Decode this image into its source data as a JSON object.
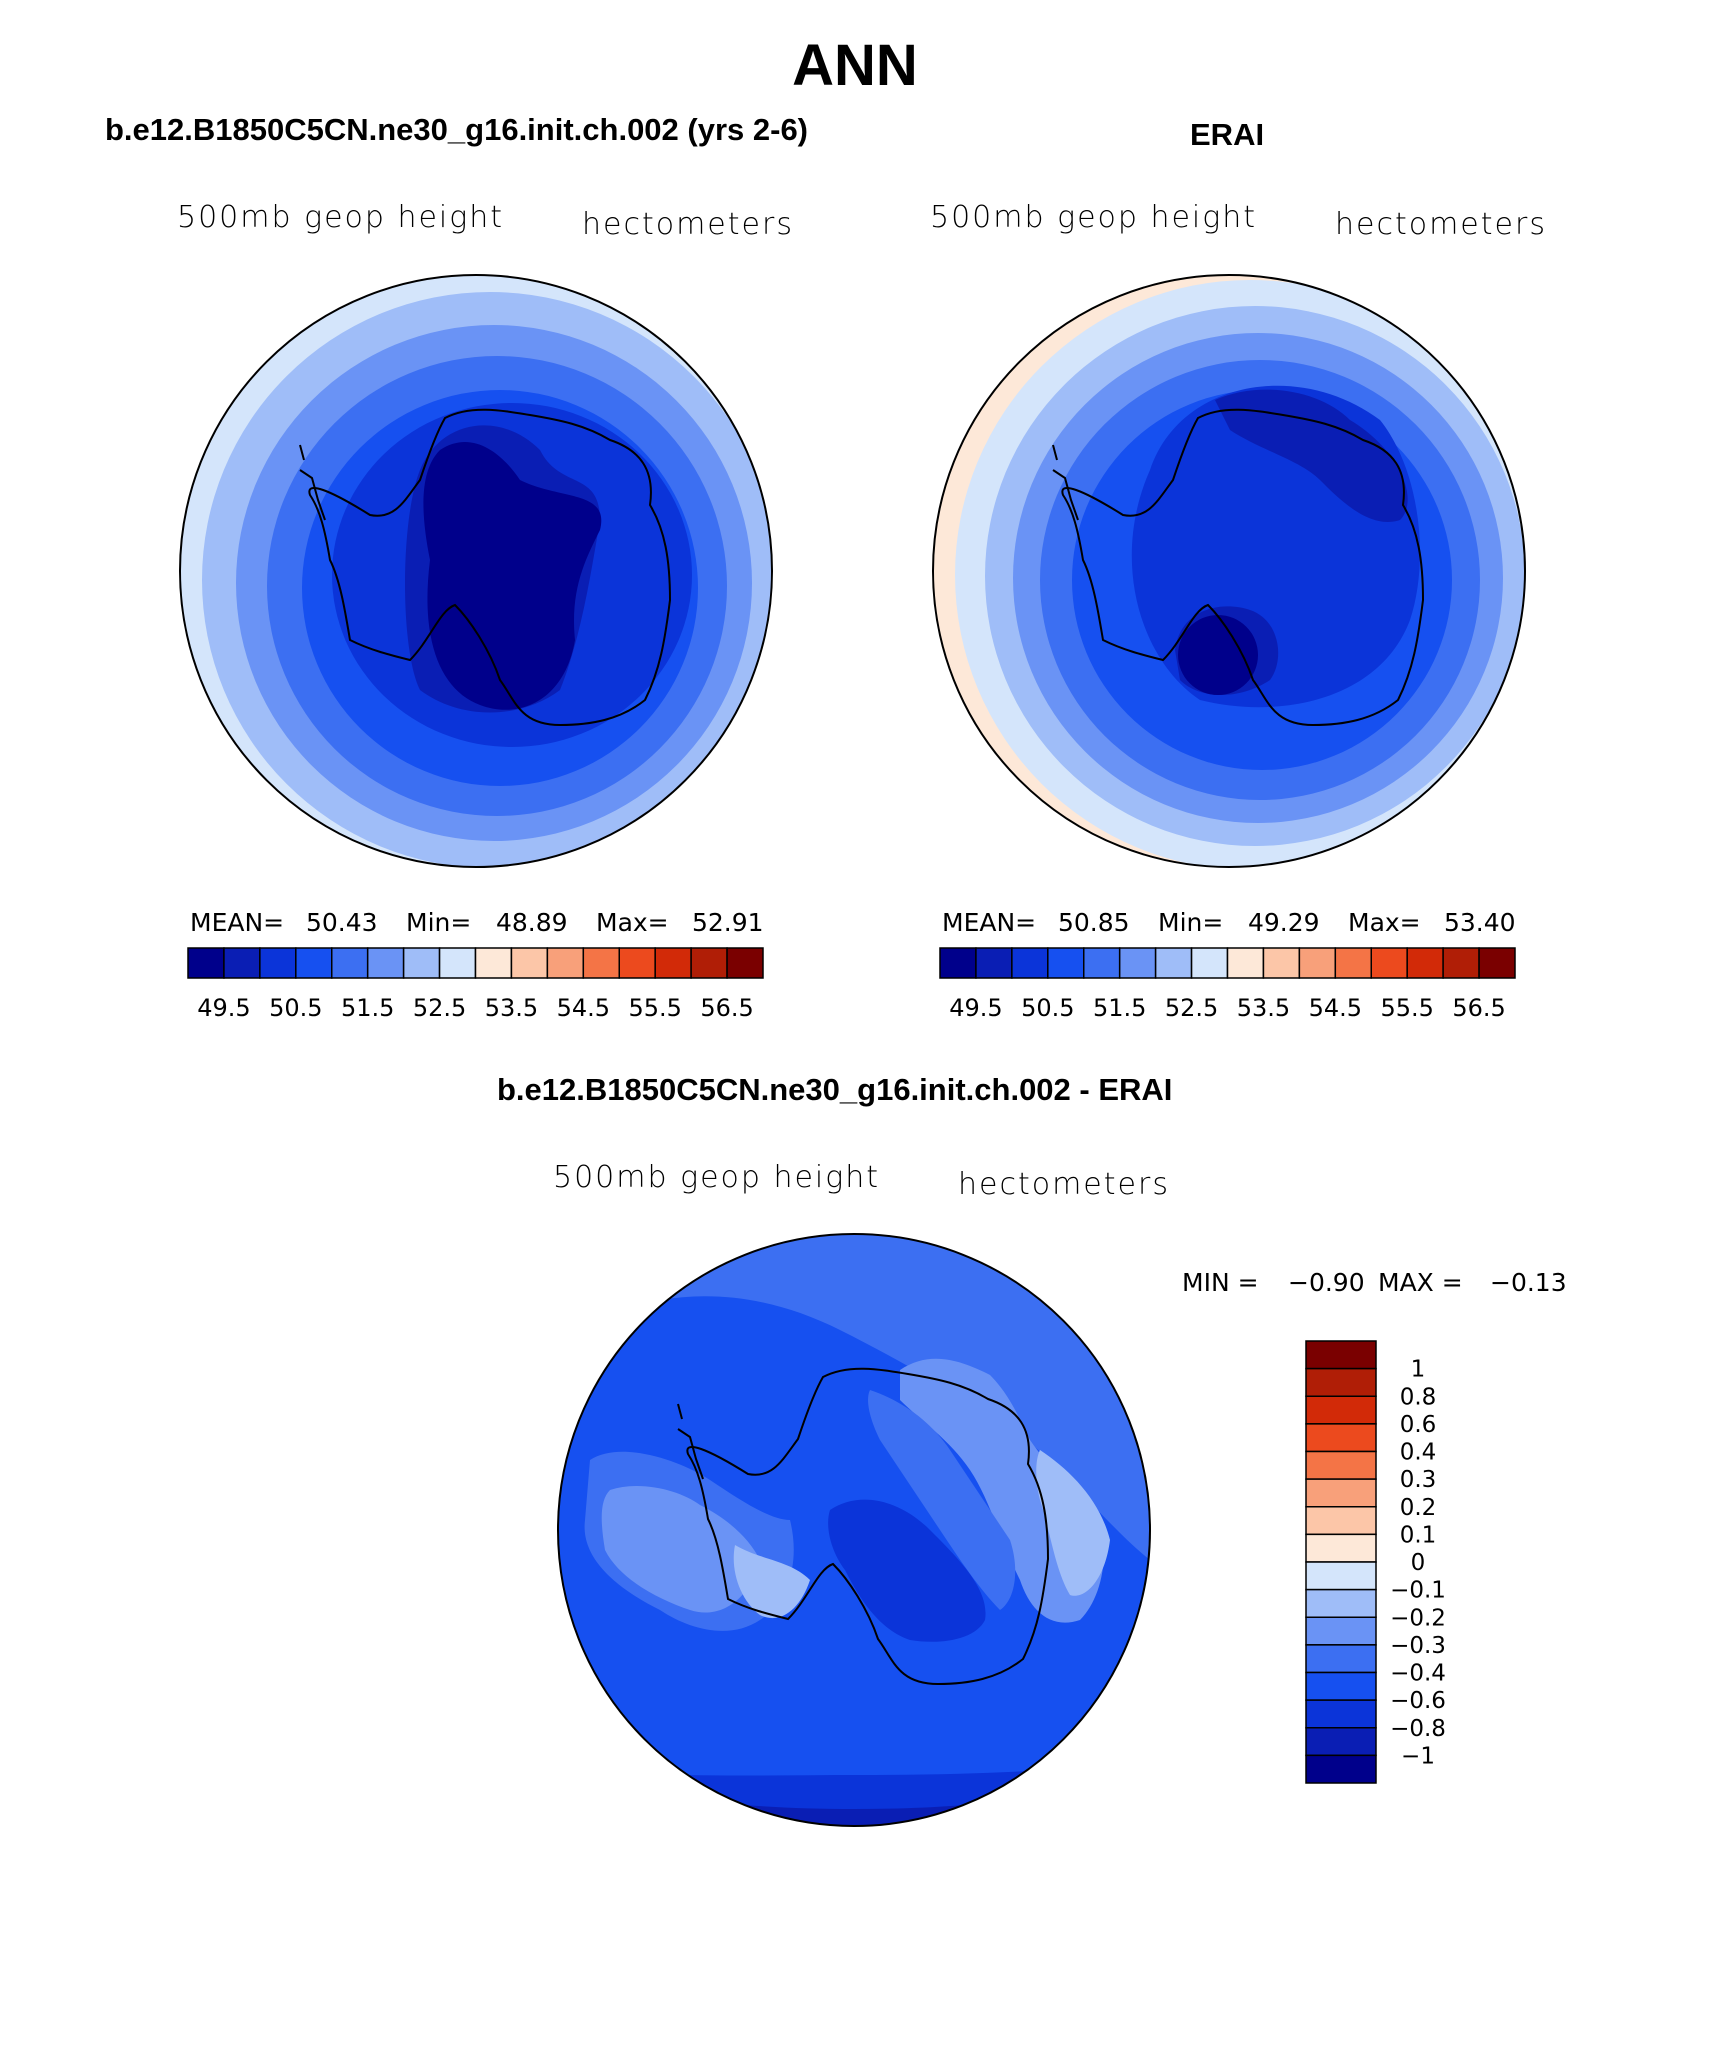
{
  "title": "ANN",
  "colors": {
    "abs_levels": [
      "#00008b",
      "#0a1eb4",
      "#0b34d9",
      "#1650f0",
      "#3c6ff2",
      "#6a93f5",
      "#9fbdf8",
      "#d4e5fb",
      "#fde8d8",
      "#fcc6a8",
      "#f8a07a",
      "#f47446",
      "#ec4a1e",
      "#d22a08",
      "#b01e06",
      "#7a0000"
    ],
    "diff_levels": [
      "#00008b",
      "#0a1eb4",
      "#0b34d9",
      "#1650f0",
      "#3c6ff2",
      "#6a93f5",
      "#9fbdf8",
      "#d4e5fb",
      "#fde8d8",
      "#fcc6a8",
      "#f8a07a",
      "#f47446",
      "#ec4a1e",
      "#d22a08",
      "#b01e06",
      "#7a0000"
    ]
  },
  "panels": [
    {
      "title": "b.e12.B1850C5CN.ne30_g16.init.ch.002 (yrs 2-6)",
      "field_label": "500mb geop height",
      "units_label": "hectometers",
      "stats": {
        "mean_label": "MEAN=",
        "mean": "50.43",
        "min_label": "Min=",
        "min": "48.89",
        "max_label": "Max=",
        "max": "52.91"
      },
      "colorbar_ticks": [
        "49.5",
        "50.5",
        "51.5",
        "52.5",
        "53.5",
        "54.5",
        "55.5",
        "56.5"
      ]
    },
    {
      "title": "ERAI",
      "field_label": "500mb geop height",
      "units_label": "hectometers",
      "stats": {
        "mean_label": "MEAN=",
        "mean": "50.85",
        "min_label": "Min=",
        "min": "49.29",
        "max_label": "Max=",
        "max": "53.40"
      },
      "colorbar_ticks": [
        "49.5",
        "50.5",
        "51.5",
        "52.5",
        "53.5",
        "54.5",
        "55.5",
        "56.5"
      ]
    },
    {
      "title": "b.e12.B1850C5CN.ne30_g16.init.ch.002 - ERAI",
      "field_label": "500mb geop height",
      "units_label": "hectometers",
      "minmax": {
        "min_label": "MIN =",
        "min": "−0.90",
        "max_label": "MAX =",
        "max": "−0.13"
      },
      "colorbar_ticks": [
        "1",
        "0.8",
        "0.6",
        "0.4",
        "0.3",
        "0.2",
        "0.1",
        "0",
        "−0.1",
        "−0.2",
        "−0.3",
        "−0.4",
        "−0.6",
        "−0.8",
        "−1"
      ]
    }
  ]
}
